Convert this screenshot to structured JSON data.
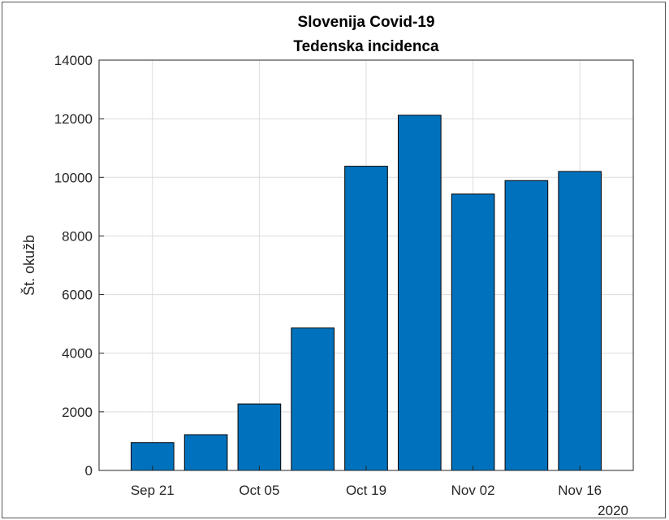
{
  "chart_data": {
    "type": "bar",
    "title": [
      "Slovenija Covid-19",
      "Tedenska incidenca"
    ],
    "xlabel": "",
    "ylabel": "Št. okužb",
    "x_tick_labels": [
      "Sep 21",
      "Oct 05",
      "Oct 19",
      "Nov 02",
      "Nov 16"
    ],
    "x_secondary_label": "2020",
    "categories": [
      "2020-09-21",
      "2020-09-28",
      "2020-10-05",
      "2020-10-12",
      "2020-10-19",
      "2020-10-26",
      "2020-11-02",
      "2020-11-09",
      "2020-11-16"
    ],
    "values": [
      950,
      1220,
      2270,
      4860,
      10380,
      12120,
      9430,
      9890,
      10200
    ],
    "ylim": [
      0,
      14000
    ],
    "y_ticks": [
      0,
      2000,
      4000,
      6000,
      8000,
      10000,
      12000,
      14000
    ],
    "grid": true,
    "bar_color": "#0072BD",
    "legend": null
  }
}
